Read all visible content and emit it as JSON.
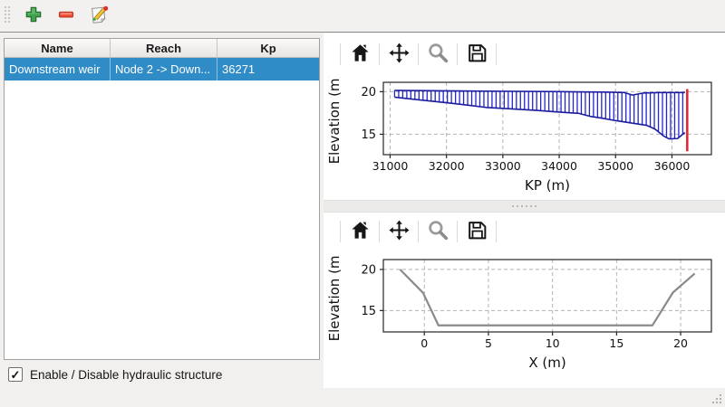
{
  "main_toolbar": {
    "buttons": [
      {
        "name": "add-structure",
        "icon": "plus-icon"
      },
      {
        "name": "remove-structure",
        "icon": "minus-icon"
      },
      {
        "name": "edit-structure",
        "icon": "edit-icon"
      }
    ]
  },
  "table": {
    "columns": [
      "Name",
      "Reach",
      "Kp"
    ],
    "rows": [
      {
        "name": "Downstream weir",
        "reach": "Node 2 -> Down...",
        "kp": "36271"
      }
    ],
    "selected_row": 0
  },
  "checkbox": {
    "label": "Enable / Disable hydraulic structure",
    "checked": true,
    "glyph": "✓"
  },
  "plot_toolbars": {
    "icons": [
      "home-icon",
      "pan-icon",
      "zoom-icon",
      "save-icon"
    ]
  },
  "colors": {
    "selection_blue": "#308cc6",
    "hatch_blue": "#2525cc",
    "profile_navy": "#1c1ca0",
    "marker_red": "#e0242e",
    "section_gray": "#8a8a8a",
    "grid_gray": "#b3b3b3",
    "spine_black": "#262626"
  },
  "chart_data": [
    {
      "type": "line",
      "title": "",
      "xlabel": "KP (m)",
      "ylabel": "Elevation (m)",
      "xlim": [
        30880,
        36700
      ],
      "ylim": [
        12.6,
        21.1
      ],
      "xticks": [
        31000,
        32000,
        33000,
        34000,
        35000,
        36000
      ],
      "yticks": [
        15,
        20
      ],
      "grid": true,
      "series": [
        {
          "name": "bank_top_profile",
          "points": [
            [
              31080,
              20.15
            ],
            [
              32000,
              20.1
            ],
            [
              33000,
              20.05
            ],
            [
              34000,
              20.0
            ],
            [
              34800,
              19.95
            ],
            [
              35150,
              19.9
            ],
            [
              35300,
              19.6
            ],
            [
              35500,
              19.85
            ],
            [
              35800,
              19.9
            ],
            [
              36230,
              19.9
            ]
          ]
        },
        {
          "name": "bed_bottom_profile",
          "points": [
            [
              31080,
              19.35
            ],
            [
              31500,
              19.05
            ],
            [
              32000,
              18.7
            ],
            [
              32400,
              18.4
            ],
            [
              32700,
              18.15
            ],
            [
              33100,
              18.0
            ],
            [
              33600,
              17.8
            ],
            [
              34000,
              17.6
            ],
            [
              34350,
              17.45
            ],
            [
              34550,
              17.1
            ],
            [
              34750,
              16.9
            ],
            [
              35000,
              16.6
            ],
            [
              35300,
              16.3
            ],
            [
              35550,
              16.05
            ],
            [
              35700,
              15.6
            ],
            [
              35850,
              14.8
            ],
            [
              35950,
              14.45
            ],
            [
              36100,
              14.5
            ],
            [
              36230,
              15.2
            ]
          ]
        }
      ],
      "hatch": {
        "from": 31080,
        "to": 36230,
        "step": 72
      },
      "marker_line": {
        "x": 36271,
        "y1": 13.0,
        "y2": 20.3
      }
    },
    {
      "type": "line",
      "title": "",
      "xlabel": "X (m)",
      "ylabel": "Elevation (m)",
      "xlim": [
        -3.2,
        22.4
      ],
      "ylim": [
        12.4,
        21.2
      ],
      "xticks": [
        0,
        5,
        10,
        15,
        20
      ],
      "yticks": [
        15,
        20
      ],
      "grid": true,
      "series": [
        {
          "name": "cross_section_profile",
          "points": [
            [
              -1.9,
              20.0
            ],
            [
              -0.1,
              17.15
            ],
            [
              1.1,
              13.2
            ],
            [
              17.8,
              13.2
            ],
            [
              19.4,
              17.2
            ],
            [
              21.1,
              19.5
            ]
          ]
        }
      ]
    }
  ]
}
